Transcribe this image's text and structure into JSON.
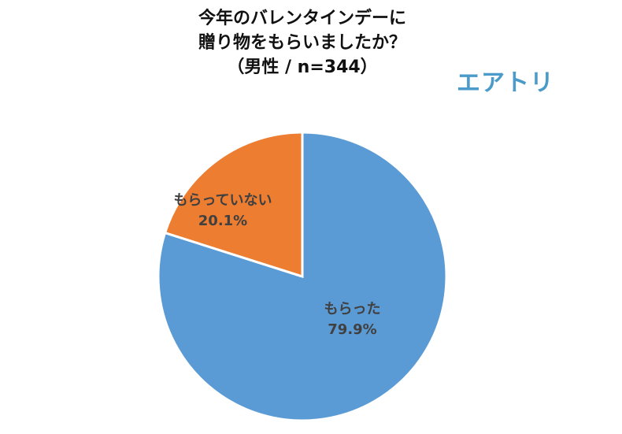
{
  "title": {
    "line1": "今年のバレンタインデーに",
    "line2": "贈り物をもらいましたか？",
    "line3": "（男性 / n=344）"
  },
  "logo": {
    "text": "エアトリ",
    "color": "#4A9BC9"
  },
  "chart_data": {
    "type": "pie",
    "title": "今年のバレンタインデーに贈り物をもらいましたか？（男性 / n=344）",
    "n": 344,
    "start_angle": "12 o'clock, clockwise",
    "slices": [
      {
        "label": "もらった",
        "value": 79.9,
        "display": "79.9%",
        "color": "#5B9BD5"
      },
      {
        "label": "もらっていない",
        "value": 20.1,
        "display": "20.1%",
        "color": "#ED7D31"
      }
    ],
    "legend": "none (data labels on slices)"
  }
}
